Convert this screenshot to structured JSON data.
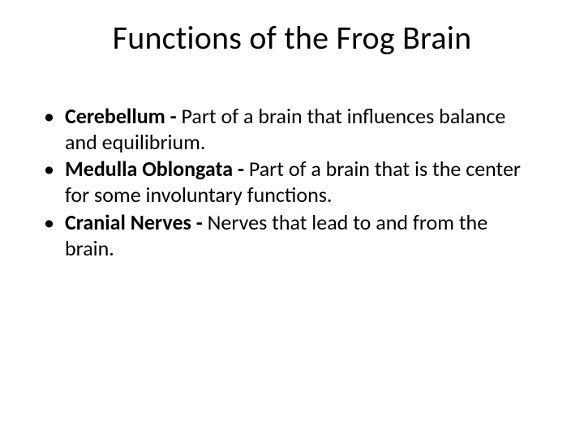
{
  "slide": {
    "title": "Functions of the Frog Brain",
    "title_fontsize": 40,
    "body_fontsize": 26,
    "background_color": "#ffffff",
    "text_color": "#000000",
    "bullets": [
      {
        "term": "Cerebellum - ",
        "definition": "Part of a brain that influences balance and equilibrium."
      },
      {
        "term": "Medulla Oblongata - ",
        "definition": "Part of a brain that is the center for some involuntary functions."
      },
      {
        "term": "Cranial Nerves - ",
        "definition": "Nerves that lead to and from the brain."
      }
    ]
  }
}
